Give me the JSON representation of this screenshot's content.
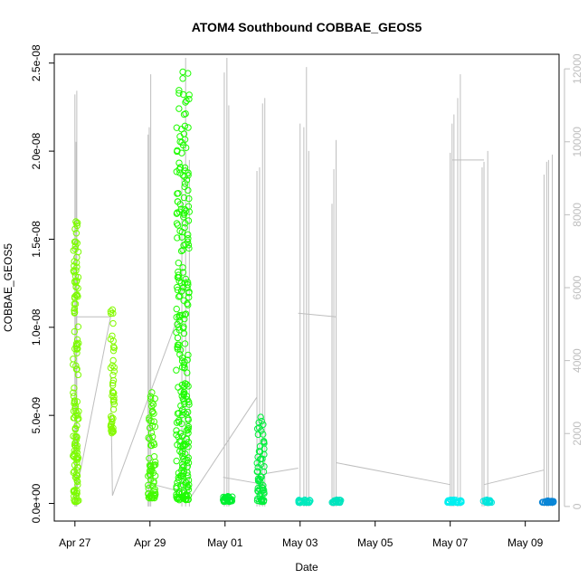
{
  "chart_data": {
    "type": "scatter",
    "title": "ATOM4 Southbound COBBAE_GEOS5",
    "xlabel": "Date",
    "ylabel": "COBBAE_GEOS5",
    "x_ticks": [
      {
        "day": 0,
        "label": "Apr 27"
      },
      {
        "day": 2,
        "label": "Apr 29"
      },
      {
        "day": 4,
        "label": "May 01"
      },
      {
        "day": 6,
        "label": "May 03"
      },
      {
        "day": 8,
        "label": "May 05"
      },
      {
        "day": 10,
        "label": "May 07"
      },
      {
        "day": 12,
        "label": "May 09"
      }
    ],
    "xlim_days": [
      -0.55,
      12.9
    ],
    "y_left": {
      "ylim": [
        -1e-09,
        2.55e-08
      ],
      "ticks": [
        {
          "value": 0,
          "label": "0.0e+00"
        },
        {
          "value": 5e-09,
          "label": "5.0e-09"
        },
        {
          "value": 1e-08,
          "label": "1.0e-08"
        },
        {
          "value": 1.5e-08,
          "label": "1.5e-08"
        },
        {
          "value": 2e-08,
          "label": "2.0e-08"
        },
        {
          "value": 2.5e-08,
          "label": "2.5e-08"
        }
      ]
    },
    "y_right": {
      "ylim": [
        -400,
        12400
      ],
      "color": "#bebebe",
      "ticks": [
        0,
        2000,
        4000,
        6000,
        8000,
        10000,
        12000
      ]
    },
    "series": [
      {
        "type": "scatter",
        "marker": "open-circle",
        "clusters": [
          {
            "day_start": -0.05,
            "day_end": 0.1,
            "min": 1e-10,
            "max": 1.6e-08,
            "color": "#7cfc00",
            "count": 140
          },
          {
            "day_start": 0.95,
            "day_end": 1.05,
            "min": 4e-09,
            "max": 1.1e-08,
            "color": "#84fa00",
            "count": 45
          },
          {
            "day_start": 1.95,
            "day_end": 2.15,
            "min": 3e-10,
            "max": 6.3e-09,
            "color": "#44fa00",
            "count": 70
          },
          {
            "day_start": 2.7,
            "day_end": 3.05,
            "min": 2e-10,
            "max": 2.45e-08,
            "color": "#1efc00",
            "count": 260
          },
          {
            "day_start": 3.95,
            "day_end": 4.2,
            "min": 1e-10,
            "max": 4e-10,
            "color": "#00f030",
            "count": 30
          },
          {
            "day_start": 4.85,
            "day_end": 5.05,
            "min": 1e-10,
            "max": 4.9e-09,
            "color": "#00f03c",
            "count": 60
          },
          {
            "day_start": 5.95,
            "day_end": 6.3,
            "min": 5e-11,
            "max": 2e-10,
            "color": "#00eabd",
            "count": 25
          },
          {
            "day_start": 6.85,
            "day_end": 7.1,
            "min": 5e-11,
            "max": 2e-10,
            "color": "#00e4be",
            "count": 20
          },
          {
            "day_start": 9.9,
            "day_end": 10.3,
            "min": 5e-11,
            "max": 2e-10,
            "color": "#00f0f0",
            "count": 30
          },
          {
            "day_start": 10.85,
            "day_end": 11.1,
            "min": 5e-11,
            "max": 2e-10,
            "color": "#00e6dd",
            "count": 20
          },
          {
            "day_start": 12.45,
            "day_end": 12.75,
            "min": 5e-11,
            "max": 1.5e-10,
            "color": "#0a86d6",
            "count": 30
          }
        ]
      },
      {
        "type": "line",
        "axis": "right",
        "color": "#bebebe",
        "spikes": [
          {
            "day": 0.0,
            "max": 11300
          },
          {
            "day": 0.05,
            "max": 11400
          },
          {
            "day": 0.03,
            "max": 10000
          },
          {
            "day": 1.95,
            "max": 10200
          },
          {
            "day": 2.02,
            "max": 11850
          },
          {
            "day": 1.98,
            "max": 10400
          },
          {
            "day": 2.85,
            "max": 9000
          },
          {
            "day": 2.95,
            "max": 12300
          },
          {
            "day": 3.05,
            "max": 9500
          },
          {
            "day": 3.98,
            "max": 11900
          },
          {
            "day": 4.05,
            "max": 12300
          },
          {
            "day": 4.1,
            "max": 11000
          },
          {
            "day": 4.85,
            "max": 9200
          },
          {
            "day": 4.92,
            "max": 9300
          },
          {
            "day": 5.0,
            "max": 11050
          },
          {
            "day": 5.06,
            "max": 11200
          },
          {
            "day": 6.0,
            "max": 10500
          },
          {
            "day": 6.1,
            "max": 10400
          },
          {
            "day": 6.17,
            "max": 12050
          },
          {
            "day": 6.23,
            "max": 9750
          },
          {
            "day": 6.85,
            "max": 8300
          },
          {
            "day": 6.9,
            "max": 9250
          },
          {
            "day": 6.96,
            "max": 10050
          },
          {
            "day": 10.0,
            "max": 9700
          },
          {
            "day": 10.05,
            "max": 10500
          },
          {
            "day": 10.1,
            "max": 10750
          },
          {
            "day": 10.2,
            "max": 11200
          },
          {
            "day": 10.27,
            "max": 11850
          },
          {
            "day": 10.85,
            "max": 9300
          },
          {
            "day": 10.9,
            "max": 9450
          },
          {
            "day": 11.0,
            "max": 9750
          },
          {
            "day": 12.5,
            "max": 9100
          },
          {
            "day": 12.57,
            "max": 9450
          },
          {
            "day": 12.62,
            "max": 9500
          },
          {
            "day": 12.72,
            "max": 9650
          }
        ],
        "connectors": [
          [
            0.0,
            200,
            0.95,
            5200
          ],
          [
            0.05,
            5200,
            0.95,
            5200
          ],
          [
            0.95,
            3600,
            1.0,
            300
          ],
          [
            1.0,
            300,
            2.75,
            5200
          ],
          [
            2.1,
            600,
            2.85,
            400
          ],
          [
            3.05,
            200,
            4.85,
            3000
          ],
          [
            3.95,
            800,
            5.06,
            600
          ],
          [
            5.06,
            900,
            5.95,
            1050
          ],
          [
            5.95,
            5300,
            6.96,
            5200
          ],
          [
            6.96,
            1200,
            10.0,
            600
          ],
          [
            10.05,
            9500,
            10.9,
            9500
          ],
          [
            10.9,
            600,
            12.5,
            1000
          ]
        ]
      }
    ]
  }
}
